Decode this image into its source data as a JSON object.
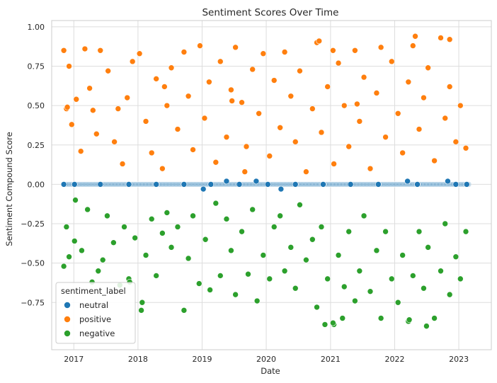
{
  "chart_data": {
    "type": "scatter",
    "title": "Sentiment Scores Over Time",
    "xlabel": "Date",
    "ylabel": "Sentiment Compound Score",
    "xlim": [
      "2016-08-28",
      "2023-07-05"
    ],
    "ylim": [
      -1.05,
      1.04
    ],
    "x_ticks": [
      "2017-01-01",
      "2018-01-01",
      "2019-01-01",
      "2020-01-01",
      "2021-01-01",
      "2022-01-01",
      "2023-01-01"
    ],
    "x_tick_labels": [
      "2017",
      "2018",
      "2019",
      "2020",
      "2021",
      "2022",
      "2023"
    ],
    "y_ticks": [
      -0.75,
      -0.5,
      -0.25,
      0.0,
      0.25,
      0.5,
      0.75,
      1.0
    ],
    "y_tick_labels": [
      "−0.75",
      "−0.50",
      "−0.25",
      "0.00",
      "0.25",
      "0.50",
      "0.75",
      "1.00"
    ],
    "grid": true,
    "background": "#ffffff",
    "grid_color": "#dddddd",
    "legend": {
      "title": "sentiment_label",
      "placement": "lower-left"
    },
    "series": [
      {
        "name": "neutral",
        "color": "#1f77b4",
        "x": [
          "2016-11-05",
          "2019-01-08",
          "2019-05-20",
          "2019-11-05",
          "2020-03-25",
          "2022-03-15",
          "2022-10-30",
          "2017-01-05",
          "2017-06-01",
          "2017-11-10",
          "2018-04-15",
          "2018-09-20",
          "2019-02-20",
          "2019-08-01",
          "2020-01-10",
          "2020-06-15",
          "2020-11-20",
          "2021-04-25",
          "2021-09-30",
          "2022-05-10",
          "2022-12-15",
          "2023-02-15"
        ],
        "y": [
          0.0,
          -0.03,
          0.02,
          0.02,
          -0.03,
          0.02,
          0.02,
          0.0,
          0.0,
          0.0,
          0.0,
          0.0,
          0.0,
          0.0,
          0.0,
          0.0,
          0.0,
          0.0,
          0.0,
          0.0,
          0.0,
          0.0
        ]
      },
      {
        "name": "positive",
        "color": "#ff7f0e",
        "x": [
          "2016-11-05",
          "2016-11-20",
          "2016-12-05",
          "2016-12-20",
          "2017-01-15",
          "2017-02-10",
          "2017-03-05",
          "2017-04-01",
          "2017-05-10",
          "2017-06-01",
          "2017-07-15",
          "2017-08-20",
          "2017-09-10",
          "2017-10-05",
          "2017-11-01",
          "2017-12-01",
          "2018-01-10",
          "2018-02-15",
          "2018-03-20",
          "2018-04-15",
          "2018-05-20",
          "2018-06-15",
          "2018-07-10",
          "2018-08-15",
          "2018-09-20",
          "2018-10-15",
          "2018-11-10",
          "2018-12-20",
          "2019-01-15",
          "2019-02-10",
          "2019-03-20",
          "2019-04-15",
          "2019-05-20",
          "2019-06-15",
          "2019-07-10",
          "2019-08-15",
          "2019-09-10",
          "2019-10-15",
          "2019-11-20",
          "2019-12-15",
          "2020-01-20",
          "2020-02-15",
          "2020-03-20",
          "2020-04-15",
          "2020-05-20",
          "2020-06-15",
          "2020-07-10",
          "2020-08-15",
          "2020-09-20",
          "2020-10-15",
          "2020-11-10",
          "2020-12-15",
          "2021-01-20",
          "2021-02-15",
          "2021-03-20",
          "2021-04-15",
          "2021-05-20",
          "2021-06-15",
          "2021-07-10",
          "2021-08-15",
          "2021-09-20",
          "2021-10-15",
          "2021-11-10",
          "2021-12-15",
          "2022-01-20",
          "2022-02-15",
          "2022-03-20",
          "2022-04-15",
          "2022-05-20",
          "2022-06-15",
          "2022-07-10",
          "2022-08-15",
          "2022-09-20",
          "2022-10-15",
          "2022-11-10",
          "2022-12-15",
          "2023-01-10",
          "2023-02-10",
          "2017-04-20",
          "2018-06-01",
          "2019-06-20",
          "2020-10-28",
          "2021-06-01",
          "2022-04-28",
          "2022-11-10",
          "2016-11-25",
          "2019-09-01",
          "2021-01-15"
        ],
        "y": [
          0.85,
          0.48,
          0.75,
          0.38,
          0.54,
          0.21,
          0.86,
          0.61,
          0.32,
          0.85,
          0.72,
          0.27,
          0.48,
          0.13,
          0.55,
          0.78,
          0.83,
          0.4,
          0.2,
          0.67,
          0.1,
          0.5,
          0.74,
          0.35,
          0.84,
          0.56,
          0.22,
          0.88,
          0.42,
          0.65,
          0.14,
          0.78,
          0.3,
          0.6,
          0.87,
          0.52,
          0.24,
          0.73,
          0.45,
          0.83,
          0.18,
          0.66,
          0.36,
          0.84,
          0.56,
          0.27,
          0.72,
          0.08,
          0.48,
          0.9,
          0.33,
          0.62,
          0.13,
          0.77,
          0.5,
          0.24,
          0.85,
          0.4,
          0.68,
          0.1,
          0.58,
          0.87,
          0.3,
          0.78,
          0.45,
          0.2,
          0.65,
          0.88,
          0.35,
          0.55,
          0.74,
          0.15,
          0.93,
          0.42,
          0.62,
          0.27,
          0.5,
          0.23,
          0.47,
          0.62,
          0.53,
          0.91,
          0.51,
          0.94,
          0.92,
          0.49,
          0.08,
          0.85
        ]
      },
      {
        "name": "negative",
        "color": "#2ca02c",
        "x": [
          "2016-11-05",
          "2016-11-20",
          "2016-12-05",
          "2017-01-10",
          "2017-02-15",
          "2017-03-20",
          "2017-04-15",
          "2017-05-20",
          "2017-06-15",
          "2017-07-10",
          "2017-08-15",
          "2017-09-20",
          "2017-10-15",
          "2017-11-10",
          "2017-12-15",
          "2018-01-20",
          "2018-02-15",
          "2018-03-20",
          "2018-04-15",
          "2018-05-20",
          "2018-06-15",
          "2018-07-10",
          "2018-08-15",
          "2018-09-20",
          "2018-10-15",
          "2018-11-10",
          "2018-12-15",
          "2019-01-20",
          "2019-02-15",
          "2019-03-20",
          "2019-04-15",
          "2019-05-20",
          "2019-06-15",
          "2019-07-10",
          "2019-08-15",
          "2019-09-20",
          "2019-10-15",
          "2019-11-10",
          "2019-12-15",
          "2020-01-20",
          "2020-02-15",
          "2020-03-20",
          "2020-04-15",
          "2020-05-20",
          "2020-06-15",
          "2020-07-10",
          "2020-08-15",
          "2020-09-20",
          "2020-10-15",
          "2020-11-10",
          "2020-12-15",
          "2021-01-20",
          "2021-02-15",
          "2021-03-20",
          "2021-04-15",
          "2021-05-20",
          "2021-06-15",
          "2021-07-10",
          "2021-08-15",
          "2021-09-20",
          "2021-10-15",
          "2021-11-10",
          "2021-12-15",
          "2022-01-20",
          "2022-02-15",
          "2022-03-20",
          "2022-04-15",
          "2022-05-20",
          "2022-06-15",
          "2022-07-10",
          "2022-08-15",
          "2022-09-20",
          "2022-10-15",
          "2022-11-10",
          "2022-12-15",
          "2023-01-10",
          "2023-02-10",
          "2017-01-05",
          "2017-11-15",
          "2018-01-25",
          "2020-11-30",
          "2021-01-15",
          "2021-03-10",
          "2022-03-25",
          "2022-07-01"
        ],
        "y": [
          -0.52,
          -0.27,
          -0.46,
          -0.1,
          -0.42,
          -0.16,
          -0.62,
          -0.55,
          -0.48,
          -0.2,
          -0.37,
          -0.64,
          -0.27,
          -0.6,
          -0.34,
          -0.8,
          -0.45,
          -0.22,
          -0.58,
          -0.31,
          -0.18,
          -0.4,
          -0.27,
          -0.8,
          -0.47,
          -0.2,
          -0.63,
          -0.35,
          -0.67,
          -0.12,
          -0.58,
          -0.22,
          -0.42,
          -0.7,
          -0.3,
          -0.57,
          -0.16,
          -0.74,
          -0.45,
          -0.6,
          -0.27,
          -0.2,
          -0.55,
          -0.4,
          -0.66,
          -0.13,
          -0.48,
          -0.35,
          -0.78,
          -0.27,
          -0.6,
          -0.89,
          -0.45,
          -0.65,
          -0.3,
          -0.74,
          -0.55,
          -0.2,
          -0.68,
          -0.42,
          -0.85,
          -0.3,
          -0.6,
          -0.75,
          -0.45,
          -0.87,
          -0.58,
          -0.3,
          -0.66,
          -0.4,
          -0.85,
          -0.55,
          -0.25,
          -0.7,
          -0.46,
          -0.6,
          -0.3,
          -0.36,
          -0.62,
          -0.75,
          -0.89,
          -0.88,
          -0.85,
          -0.86,
          -0.9
        ]
      }
    ]
  }
}
